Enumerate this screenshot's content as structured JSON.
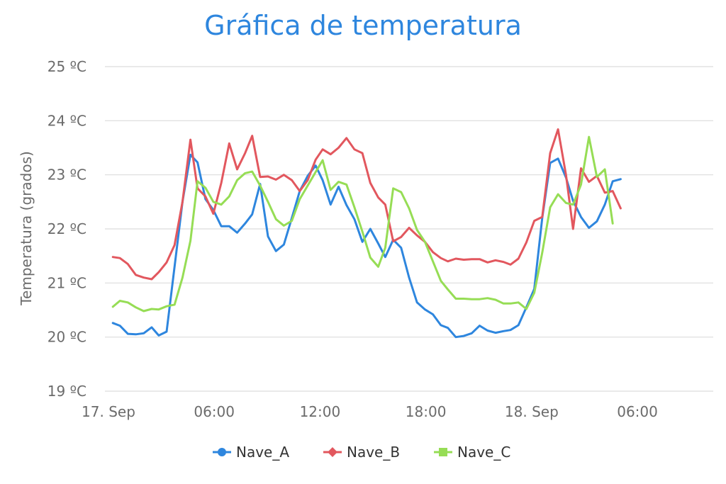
{
  "chart_data": {
    "type": "line",
    "title": "Gráfica de temperatura",
    "ylabel": "Temperatura (grados)",
    "ylim": [
      19,
      25
    ],
    "y_ticks": [
      "19 ºC",
      "20 ºC",
      "21 ºC",
      "22 ºC",
      "23 ºC",
      "24 ºC",
      "25 ºC"
    ],
    "x_ticks": [
      {
        "x": 0,
        "label": "17. Sep"
      },
      {
        "x": 6,
        "label": "06:00"
      },
      {
        "x": 12,
        "label": "12:00"
      },
      {
        "x": 18,
        "label": "18:00"
      },
      {
        "x": 24,
        "label": "18. Sep"
      },
      {
        "x": 30,
        "label": "06:00"
      }
    ],
    "xlim": [
      -0.2,
      34.3
    ],
    "x_unit": "hours since 17. Sep 00:00",
    "grid": true,
    "legend_position": "bottom",
    "series": [
      {
        "name": "Nave_A",
        "color": "#2e86de",
        "marker": "circle",
        "values": [
          [
            0.25,
            20.26
          ],
          [
            0.65,
            20.21
          ],
          [
            1.1,
            20.06
          ],
          [
            1.55,
            20.05
          ],
          [
            2.0,
            20.07
          ],
          [
            2.45,
            20.18
          ],
          [
            2.85,
            20.03
          ],
          [
            3.3,
            20.1
          ],
          [
            3.75,
            21.3
          ],
          [
            4.2,
            22.5
          ],
          [
            4.65,
            23.37
          ],
          [
            5.05,
            23.23
          ],
          [
            5.5,
            22.55
          ],
          [
            5.95,
            22.35
          ],
          [
            6.4,
            22.05
          ],
          [
            6.85,
            22.05
          ],
          [
            7.3,
            21.93
          ],
          [
            7.75,
            22.1
          ],
          [
            8.15,
            22.27
          ],
          [
            8.6,
            22.83
          ],
          [
            9.05,
            21.86
          ],
          [
            9.5,
            21.59
          ],
          [
            9.95,
            21.71
          ],
          [
            10.4,
            22.2
          ],
          [
            10.85,
            22.7
          ],
          [
            11.3,
            22.98
          ],
          [
            11.75,
            23.17
          ],
          [
            12.15,
            22.9
          ],
          [
            12.6,
            22.45
          ],
          [
            13.05,
            22.78
          ],
          [
            13.5,
            22.44
          ],
          [
            13.95,
            22.18
          ],
          [
            14.4,
            21.76
          ],
          [
            14.85,
            22.0
          ],
          [
            15.3,
            21.73
          ],
          [
            15.7,
            21.48
          ],
          [
            16.15,
            21.8
          ],
          [
            16.6,
            21.65
          ],
          [
            17.05,
            21.1
          ],
          [
            17.5,
            20.64
          ],
          [
            17.95,
            20.51
          ],
          [
            18.4,
            20.42
          ],
          [
            18.85,
            20.22
          ],
          [
            19.25,
            20.17
          ],
          [
            19.7,
            20.0
          ],
          [
            20.15,
            20.02
          ],
          [
            20.6,
            20.07
          ],
          [
            21.05,
            20.21
          ],
          [
            21.5,
            20.12
          ],
          [
            21.95,
            20.08
          ],
          [
            22.4,
            20.11
          ],
          [
            22.8,
            20.13
          ],
          [
            23.25,
            20.22
          ],
          [
            23.7,
            20.55
          ],
          [
            24.15,
            20.89
          ],
          [
            24.6,
            22.2
          ],
          [
            25.05,
            23.22
          ],
          [
            25.5,
            23.3
          ],
          [
            25.95,
            22.95
          ],
          [
            26.35,
            22.52
          ],
          [
            26.8,
            22.22
          ],
          [
            27.25,
            22.02
          ],
          [
            27.7,
            22.14
          ],
          [
            28.15,
            22.45
          ],
          [
            28.6,
            22.88
          ],
          [
            29.05,
            22.92
          ]
        ]
      },
      {
        "name": "Nave_B",
        "color": "#e2575e",
        "marker": "diamond",
        "values": [
          [
            0.25,
            21.48
          ],
          [
            0.65,
            21.46
          ],
          [
            1.1,
            21.35
          ],
          [
            1.55,
            21.15
          ],
          [
            2.0,
            21.1
          ],
          [
            2.45,
            21.07
          ],
          [
            2.85,
            21.2
          ],
          [
            3.3,
            21.38
          ],
          [
            3.75,
            21.7
          ],
          [
            4.2,
            22.5
          ],
          [
            4.65,
            23.65
          ],
          [
            5.05,
            22.75
          ],
          [
            5.5,
            22.6
          ],
          [
            5.95,
            22.28
          ],
          [
            6.4,
            22.85
          ],
          [
            6.85,
            23.58
          ],
          [
            7.3,
            23.1
          ],
          [
            7.75,
            23.4
          ],
          [
            8.15,
            23.72
          ],
          [
            8.6,
            22.96
          ],
          [
            9.05,
            22.97
          ],
          [
            9.5,
            22.91
          ],
          [
            9.95,
            23.0
          ],
          [
            10.4,
            22.9
          ],
          [
            10.85,
            22.7
          ],
          [
            11.3,
            22.9
          ],
          [
            11.75,
            23.28
          ],
          [
            12.15,
            23.47
          ],
          [
            12.6,
            23.38
          ],
          [
            13.05,
            23.5
          ],
          [
            13.5,
            23.68
          ],
          [
            13.95,
            23.47
          ],
          [
            14.4,
            23.4
          ],
          [
            14.85,
            22.85
          ],
          [
            15.3,
            22.58
          ],
          [
            15.7,
            22.45
          ],
          [
            16.15,
            21.77
          ],
          [
            16.6,
            21.85
          ],
          [
            17.05,
            22.02
          ],
          [
            17.5,
            21.88
          ],
          [
            17.95,
            21.76
          ],
          [
            18.4,
            21.57
          ],
          [
            18.85,
            21.46
          ],
          [
            19.25,
            21.4
          ],
          [
            19.7,
            21.45
          ],
          [
            20.15,
            21.43
          ],
          [
            20.6,
            21.44
          ],
          [
            21.05,
            21.44
          ],
          [
            21.5,
            21.38
          ],
          [
            21.95,
            21.42
          ],
          [
            22.4,
            21.39
          ],
          [
            22.8,
            21.34
          ],
          [
            23.25,
            21.45
          ],
          [
            23.7,
            21.75
          ],
          [
            24.15,
            22.15
          ],
          [
            24.6,
            22.22
          ],
          [
            25.05,
            23.4
          ],
          [
            25.5,
            23.84
          ],
          [
            25.95,
            23.0
          ],
          [
            26.35,
            22.0
          ],
          [
            26.8,
            23.12
          ],
          [
            27.25,
            22.87
          ],
          [
            27.7,
            22.98
          ],
          [
            28.15,
            22.67
          ],
          [
            28.6,
            22.7
          ],
          [
            29.05,
            22.38
          ]
        ]
      },
      {
        "name": "Nave_C",
        "color": "#96dd55",
        "marker": "square",
        "values": [
          [
            0.25,
            20.56
          ],
          [
            0.65,
            20.67
          ],
          [
            1.1,
            20.64
          ],
          [
            1.55,
            20.55
          ],
          [
            2.0,
            20.48
          ],
          [
            2.45,
            20.52
          ],
          [
            2.85,
            20.51
          ],
          [
            3.3,
            20.57
          ],
          [
            3.75,
            20.6
          ],
          [
            4.2,
            21.1
          ],
          [
            4.65,
            21.78
          ],
          [
            5.05,
            22.88
          ],
          [
            5.5,
            22.76
          ],
          [
            5.95,
            22.5
          ],
          [
            6.4,
            22.45
          ],
          [
            6.85,
            22.6
          ],
          [
            7.3,
            22.9
          ],
          [
            7.75,
            23.03
          ],
          [
            8.15,
            23.06
          ],
          [
            8.6,
            22.8
          ],
          [
            9.05,
            22.5
          ],
          [
            9.5,
            22.18
          ],
          [
            9.95,
            22.06
          ],
          [
            10.4,
            22.15
          ],
          [
            10.85,
            22.55
          ],
          [
            11.3,
            22.8
          ],
          [
            11.75,
            23.05
          ],
          [
            12.15,
            23.27
          ],
          [
            12.6,
            22.72
          ],
          [
            13.05,
            22.87
          ],
          [
            13.5,
            22.82
          ],
          [
            13.95,
            22.4
          ],
          [
            14.4,
            21.95
          ],
          [
            14.85,
            21.47
          ],
          [
            15.3,
            21.3
          ],
          [
            15.7,
            21.65
          ],
          [
            16.15,
            22.75
          ],
          [
            16.6,
            22.68
          ],
          [
            17.05,
            22.38
          ],
          [
            17.5,
            21.98
          ],
          [
            17.95,
            21.76
          ],
          [
            18.4,
            21.4
          ],
          [
            18.85,
            21.04
          ],
          [
            19.25,
            20.88
          ],
          [
            19.7,
            20.71
          ],
          [
            20.15,
            20.71
          ],
          [
            20.6,
            20.7
          ],
          [
            21.05,
            20.7
          ],
          [
            21.5,
            20.72
          ],
          [
            21.95,
            20.69
          ],
          [
            22.4,
            20.62
          ],
          [
            22.8,
            20.62
          ],
          [
            23.25,
            20.64
          ],
          [
            23.7,
            20.52
          ],
          [
            24.15,
            20.82
          ],
          [
            24.6,
            21.56
          ],
          [
            25.05,
            22.4
          ],
          [
            25.5,
            22.64
          ],
          [
            25.95,
            22.48
          ],
          [
            26.35,
            22.45
          ],
          [
            26.8,
            22.82
          ],
          [
            27.25,
            23.7
          ],
          [
            27.7,
            22.96
          ],
          [
            28.15,
            23.1
          ],
          [
            28.6,
            22.1
          ]
        ]
      }
    ]
  }
}
